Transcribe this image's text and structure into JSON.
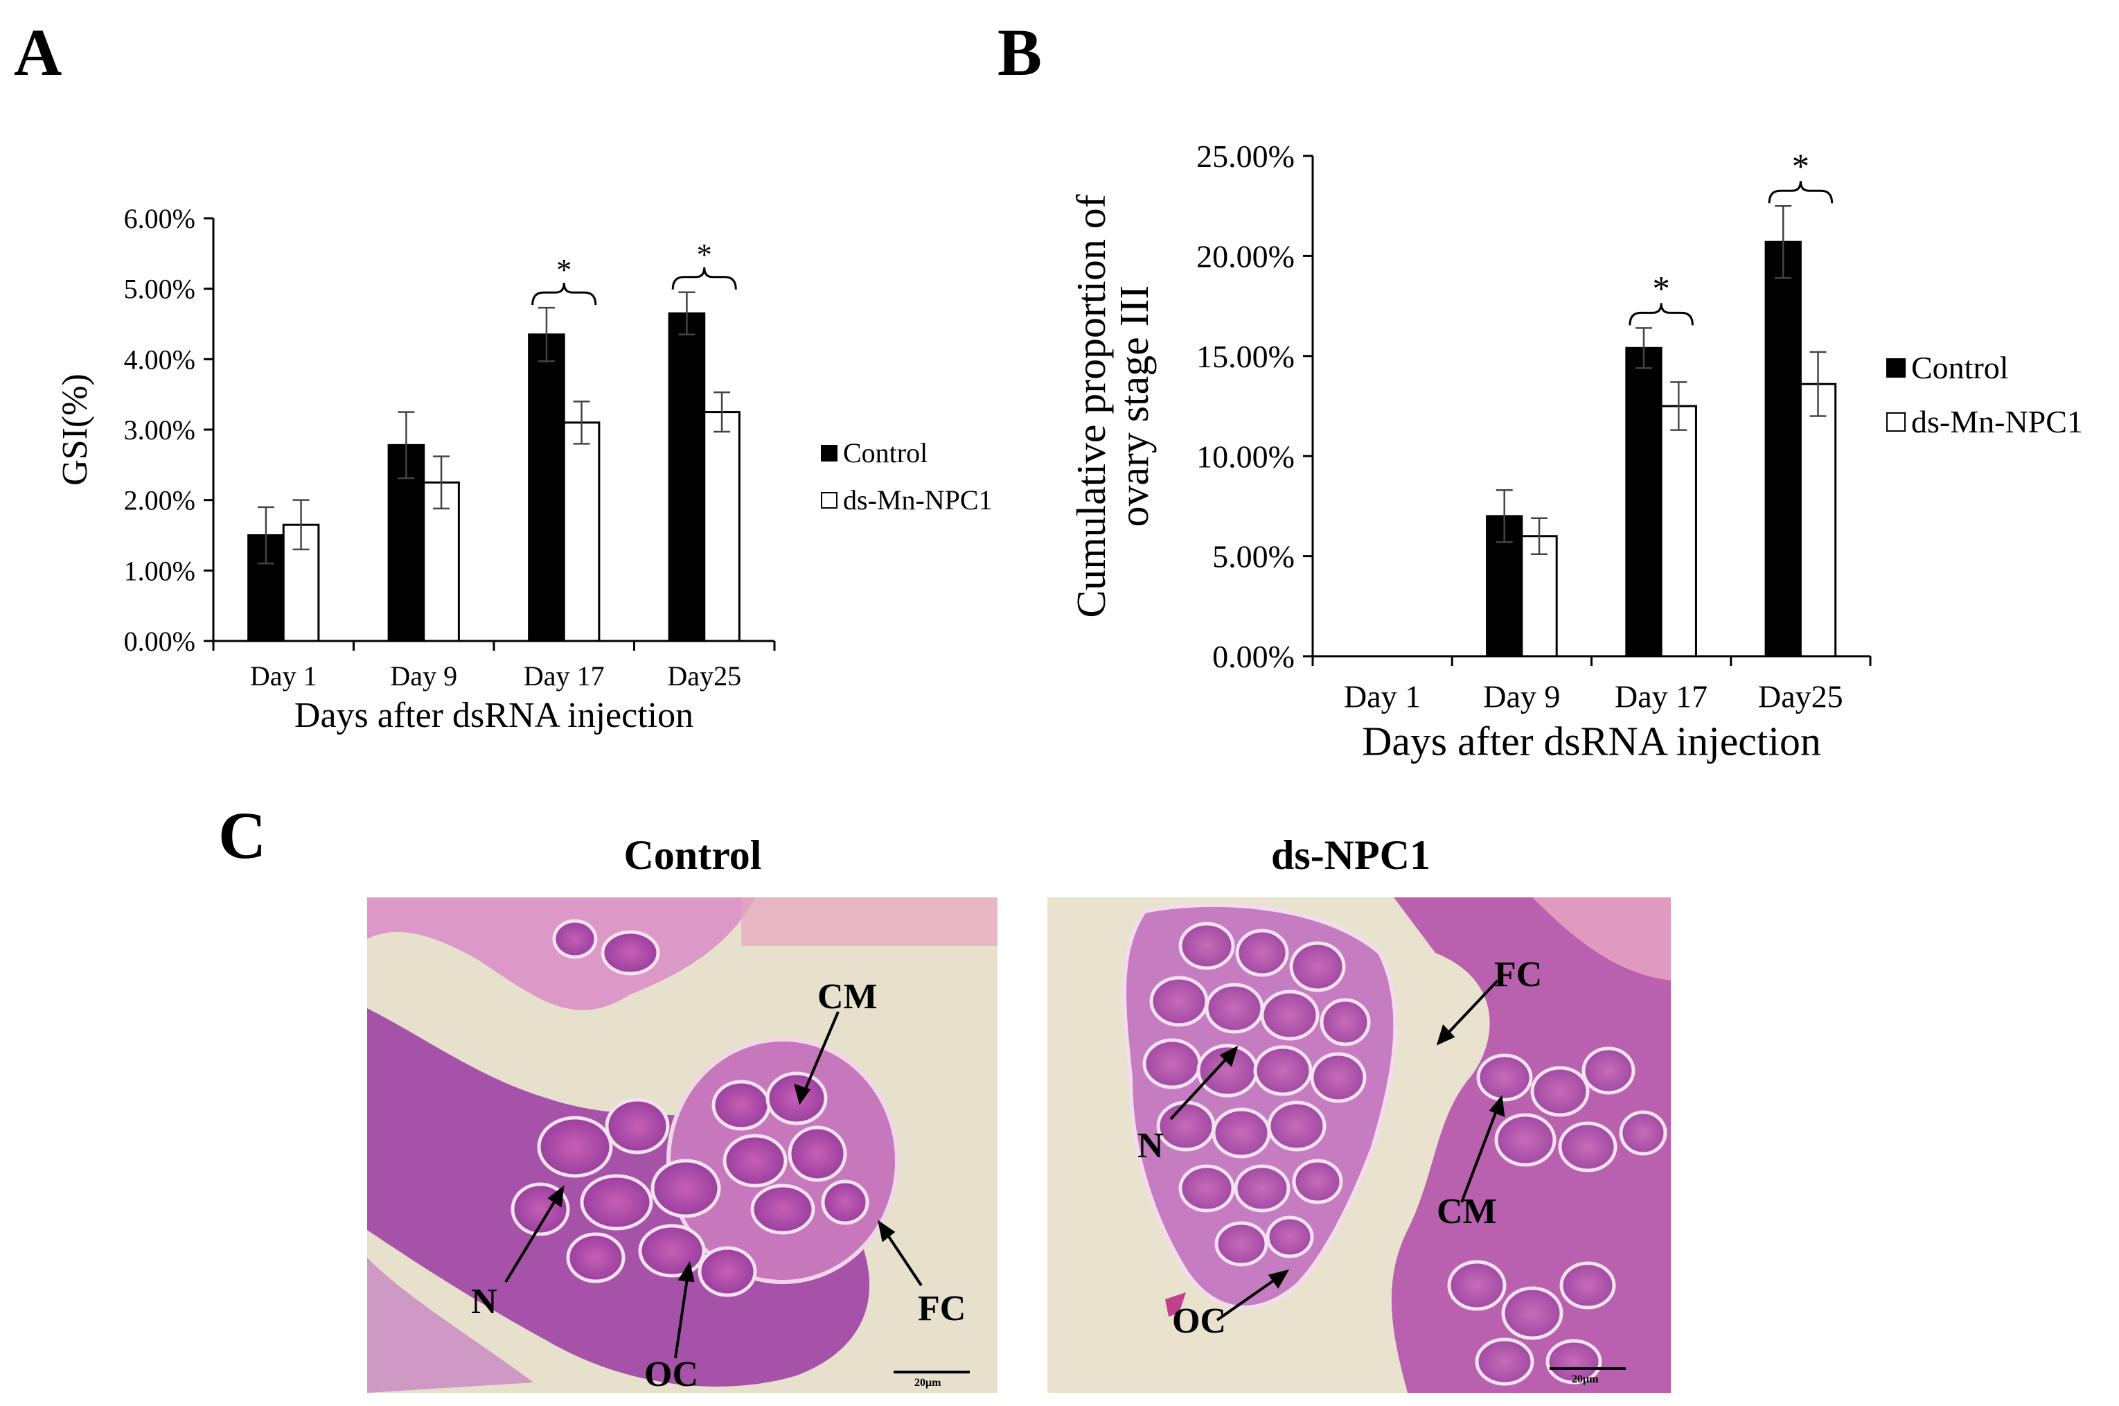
{
  "panels": {
    "a": {
      "letter": "A"
    },
    "b": {
      "letter": "B"
    },
    "c": {
      "letter": "C"
    }
  },
  "colors": {
    "control": "#000000",
    "treated": "#ffffff",
    "stain_pink": "#d977c1",
    "stain_purple": "#8a3e9a",
    "background": "#e8e2cf"
  },
  "chart_data": [
    {
      "type": "bar",
      "panel": "A",
      "ylabel": "GSI(%)",
      "xlabel": "Days after dsRNA injection",
      "categories": [
        "Day 1",
        "Day 9",
        "Day 17",
        "Day25"
      ],
      "ylim": [
        0,
        6
      ],
      "yticks": [
        "0.00%",
        "1.00%",
        "2.00%",
        "3.00%",
        "4.00%",
        "5.00%",
        "6.00%"
      ],
      "series": [
        {
          "name": "Control",
          "values": [
            1.5,
            2.78,
            4.35,
            4.65
          ],
          "errors": [
            0.4,
            0.47,
            0.38,
            0.3
          ]
        },
        {
          "name": "ds-Mn-NPC1",
          "values": [
            1.65,
            2.25,
            3.1,
            3.25
          ],
          "errors": [
            0.35,
            0.37,
            0.3,
            0.28
          ]
        }
      ],
      "significance": [
        "",
        "",
        "*",
        "*"
      ]
    },
    {
      "type": "bar",
      "panel": "B",
      "ylabel": [
        "Cumulative proportion of",
        "ovary stage III"
      ],
      "xlabel": "Days after dsRNA injection",
      "categories": [
        "Day 1",
        "Day 9",
        "Day 17",
        "Day25"
      ],
      "ylim": [
        0,
        25
      ],
      "yticks": [
        "0.00%",
        "5.00%",
        "10.00%",
        "15.00%",
        "20.00%",
        "25.00%"
      ],
      "series": [
        {
          "name": "Control",
          "values": [
            0,
            7.0,
            15.4,
            20.7
          ],
          "errors": [
            0,
            1.3,
            1.0,
            1.8
          ]
        },
        {
          "name": "ds-Mn-NPC1",
          "values": [
            0,
            6.0,
            12.5,
            13.6
          ],
          "errors": [
            0,
            0.9,
            1.2,
            1.6
          ]
        }
      ],
      "significance": [
        "",
        "",
        "*",
        "*"
      ]
    }
  ],
  "micrographs": [
    {
      "title": "Control",
      "labels": [
        "CM",
        "N",
        "OC",
        "FC"
      ],
      "scale_bar": "20μm"
    },
    {
      "title": "ds-NPC1",
      "labels": [
        "FC",
        "N",
        "CM",
        "OC"
      ],
      "scale_bar": "20μm"
    }
  ]
}
